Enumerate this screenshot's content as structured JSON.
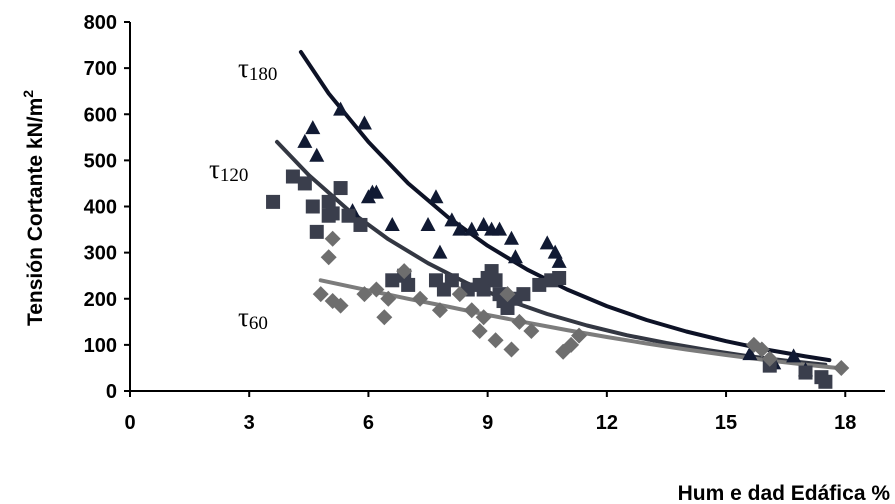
{
  "chart_data": {
    "type": "scatter",
    "title": "",
    "xlabel": "Hum e dad Edáfica  %",
    "ylabel": "Tensión Cortante kN/m",
    "ylabel_sup": "2",
    "xlim": [
      0,
      19
    ],
    "ylim": [
      0,
      800
    ],
    "x_ticks": [
      "0",
      "3",
      "6",
      "9",
      "12",
      "15",
      "18"
    ],
    "y_ticks": [
      "0",
      "100",
      "200",
      "300",
      "400",
      "500",
      "600",
      "700",
      "800"
    ],
    "grid": false,
    "legend": "none",
    "series": [
      {
        "name": "τ180",
        "label_main": "τ",
        "label_sub": "180",
        "marker": "triangle",
        "color": "#111a33",
        "line_color": "#0d1226",
        "points": [
          [
            4.4,
            540
          ],
          [
            4.6,
            570
          ],
          [
            4.7,
            510
          ],
          [
            5.3,
            610
          ],
          [
            5.9,
            580
          ],
          [
            5.6,
            390
          ],
          [
            6.0,
            420
          ],
          [
            6.1,
            430
          ],
          [
            6.2,
            430
          ],
          [
            6.6,
            360
          ],
          [
            7.5,
            360
          ],
          [
            7.7,
            420
          ],
          [
            7.8,
            300
          ],
          [
            8.1,
            370
          ],
          [
            8.3,
            350
          ],
          [
            8.6,
            350
          ],
          [
            8.9,
            360
          ],
          [
            9.1,
            350
          ],
          [
            9.3,
            350
          ],
          [
            9.6,
            330
          ],
          [
            9.7,
            290
          ],
          [
            10.5,
            320
          ],
          [
            10.7,
            300
          ],
          [
            10.8,
            280
          ],
          [
            15.6,
            80
          ],
          [
            16.2,
            60
          ],
          [
            16.7,
            75
          ],
          [
            17.0,
            45
          ]
        ],
        "trend": [
          [
            4.3,
            735
          ],
          [
            5,
            645
          ],
          [
            6,
            540
          ],
          [
            7,
            450
          ],
          [
            8,
            377
          ],
          [
            9,
            315
          ],
          [
            10,
            263
          ],
          [
            11,
            220
          ],
          [
            12,
            184
          ],
          [
            13,
            154
          ],
          [
            14,
            129
          ],
          [
            15,
            108
          ],
          [
            16,
            90
          ],
          [
            17,
            75
          ],
          [
            17.6,
            67
          ]
        ]
      },
      {
        "name": "τ120",
        "label_main": "τ",
        "label_sub": "120",
        "marker": "square",
        "color": "#3a3e4c",
        "line_color": "#333742",
        "points": [
          [
            3.6,
            410
          ],
          [
            4.1,
            465
          ],
          [
            4.4,
            450
          ],
          [
            4.6,
            400
          ],
          [
            4.7,
            345
          ],
          [
            5.0,
            380
          ],
          [
            5.0,
            410
          ],
          [
            5.1,
            385
          ],
          [
            5.3,
            440
          ],
          [
            5.5,
            380
          ],
          [
            5.8,
            360
          ],
          [
            6.6,
            240
          ],
          [
            6.9,
            250
          ],
          [
            7.0,
            230
          ],
          [
            7.7,
            240
          ],
          [
            7.9,
            220
          ],
          [
            8.1,
            240
          ],
          [
            8.5,
            220
          ],
          [
            8.8,
            230
          ],
          [
            8.9,
            220
          ],
          [
            9.0,
            245
          ],
          [
            9.1,
            260
          ],
          [
            9.2,
            240
          ],
          [
            9.3,
            210
          ],
          [
            9.4,
            195
          ],
          [
            9.5,
            180
          ],
          [
            9.7,
            200
          ],
          [
            9.9,
            210
          ],
          [
            10.3,
            230
          ],
          [
            10.6,
            240
          ],
          [
            10.8,
            245
          ],
          [
            16.1,
            55
          ],
          [
            17.0,
            40
          ],
          [
            17.4,
            30
          ],
          [
            17.5,
            20
          ]
        ],
        "trend": [
          [
            3.7,
            540
          ],
          [
            4.5,
            468
          ],
          [
            5.5,
            392
          ],
          [
            6.5,
            329
          ],
          [
            7.5,
            277
          ],
          [
            8.5,
            233
          ],
          [
            9.5,
            197
          ],
          [
            10.5,
            167
          ],
          [
            11.5,
            142
          ],
          [
            12.5,
            121
          ],
          [
            13.5,
            104
          ],
          [
            14.5,
            89
          ],
          [
            15.5,
            76
          ],
          [
            16.5,
            66
          ],
          [
            17.5,
            57
          ]
        ]
      },
      {
        "name": "τ60",
        "label_main": "τ",
        "label_sub": "60",
        "marker": "diamond",
        "color": "#6e6e6e",
        "line_color": "#7c7c7c",
        "points": [
          [
            4.8,
            210
          ],
          [
            5.1,
            330
          ],
          [
            5.0,
            290
          ],
          [
            5.1,
            195
          ],
          [
            5.3,
            185
          ],
          [
            5.9,
            210
          ],
          [
            6.2,
            220
          ],
          [
            6.4,
            160
          ],
          [
            6.5,
            200
          ],
          [
            6.9,
            260
          ],
          [
            7.3,
            200
          ],
          [
            7.8,
            175
          ],
          [
            8.3,
            210
          ],
          [
            8.6,
            175
          ],
          [
            8.8,
            130
          ],
          [
            8.9,
            160
          ],
          [
            9.2,
            110
          ],
          [
            9.5,
            210
          ],
          [
            9.6,
            90
          ],
          [
            9.8,
            150
          ],
          [
            10.1,
            130
          ],
          [
            10.9,
            85
          ],
          [
            11.1,
            100
          ],
          [
            11.3,
            120
          ],
          [
            15.7,
            100
          ],
          [
            15.9,
            90
          ],
          [
            16.1,
            70
          ],
          [
            17.9,
            50
          ]
        ],
        "trend": [
          [
            4.8,
            240
          ],
          [
            6,
            218
          ],
          [
            7,
            200
          ],
          [
            8,
            183
          ],
          [
            9,
            165
          ],
          [
            10,
            148
          ],
          [
            11,
            132
          ],
          [
            12,
            117
          ],
          [
            13,
            103
          ],
          [
            14,
            90
          ],
          [
            15,
            78
          ],
          [
            16,
            67
          ],
          [
            17,
            57
          ],
          [
            17.9,
            49
          ]
        ]
      }
    ]
  }
}
